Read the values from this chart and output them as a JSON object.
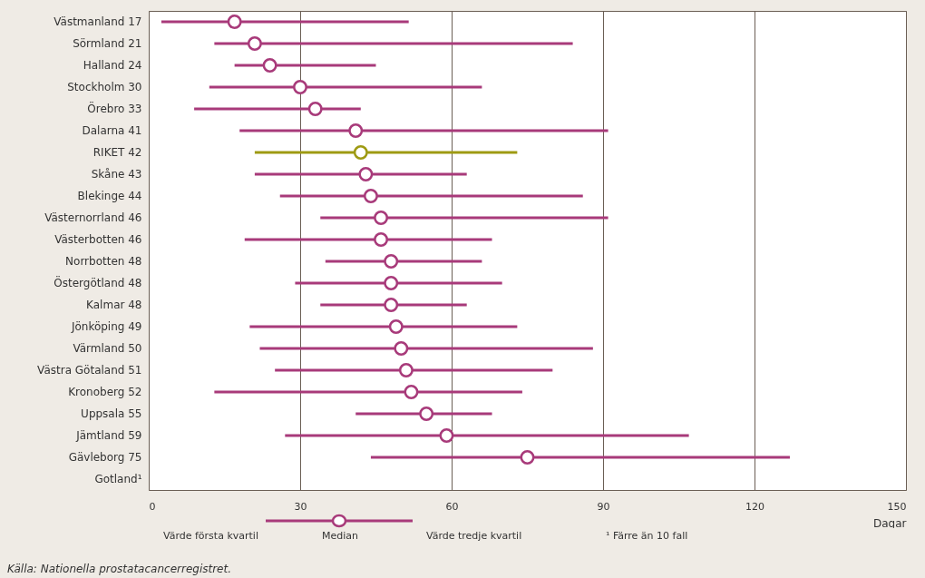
{
  "chart_data": {
    "type": "scatter",
    "orientation": "horizontal",
    "xlabel": "Dagar",
    "categories": [
      "Västmanland 17",
      "Sörmland 21",
      "Halland 24",
      "Stockholm 30",
      "Örebro 33",
      "Dalarna 41",
      "RIKET 42",
      "Skåne 43",
      "Blekinge 44",
      "Västernorrland 46",
      "Västerbotten 46",
      "Norrbotten 48",
      "Östergötland 48",
      "Kalmar 48",
      "Jönköping 49",
      "Värmland 50",
      "Västra Götaland 51",
      "Kronoberg 52",
      "Uppsala 55",
      "Jämtland 59",
      "Gävleborg 75",
      "Gotland¹"
    ],
    "values": [
      17,
      21,
      24,
      30,
      33,
      41,
      42,
      43,
      44,
      46,
      46,
      48,
      48,
      48,
      49,
      50,
      51,
      52,
      55,
      59,
      75,
      null
    ],
    "errors": [
      [
        2.5,
        51.5
      ],
      [
        13,
        84
      ],
      [
        17,
        45
      ],
      [
        12,
        66
      ],
      [
        9,
        42
      ],
      [
        18,
        91
      ],
      [
        21,
        73
      ],
      [
        21,
        63
      ],
      [
        26,
        86
      ],
      [
        34,
        91
      ],
      [
        19,
        68
      ],
      [
        35,
        66
      ],
      [
        29,
        70
      ],
      [
        34,
        63
      ],
      [
        20,
        73
      ],
      [
        22,
        88
      ],
      [
        25,
        80
      ],
      [
        13,
        74
      ],
      [
        41,
        68
      ],
      [
        27,
        107
      ],
      [
        44,
        127
      ],
      null
    ],
    "colors": [
      "#a83a7a",
      "#a83a7a",
      "#a83a7a",
      "#a83a7a",
      "#a83a7a",
      "#a83a7a",
      "#9e9a12",
      "#a83a7a",
      "#a83a7a",
      "#a83a7a",
      "#a83a7a",
      "#a83a7a",
      "#a83a7a",
      "#a83a7a",
      "#a83a7a",
      "#a83a7a",
      "#a83a7a",
      "#a83a7a",
      "#a83a7a",
      "#a83a7a",
      "#a83a7a",
      "#a83a7a"
    ],
    "xlim": [
      0,
      150
    ],
    "xticks": [
      0,
      30,
      60,
      90,
      120,
      150
    ],
    "grid": "x",
    "marker": "circle",
    "annotations": [
      "Värde första kvartil",
      "Median",
      "Värde tredje kvartil",
      "¹ Färre än 10 fall",
      "Källa: Nationella prostatacancerregistret."
    ]
  }
}
